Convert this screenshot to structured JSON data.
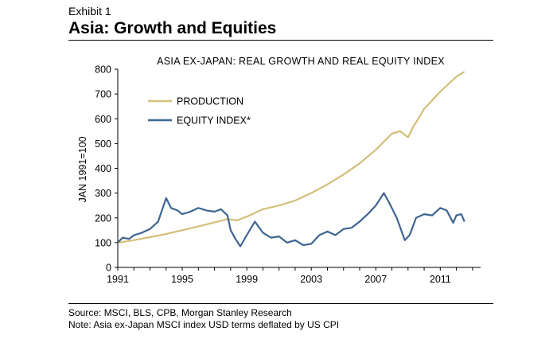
{
  "header": {
    "exhibit": "Exhibit 1",
    "title": "Asia: Growth and Equities"
  },
  "footer": {
    "source": "Source: MSCI, BLS, CPB, Morgan Stanley Research",
    "note": "Note: Asia ex-Japan MSCI index USD terms deflated by US CPI"
  },
  "colors": {
    "production": "#d4be7a",
    "equity": "#3d6591",
    "axis": "#000000"
  },
  "chart_data": {
    "type": "line",
    "title": "ASIA EX-JAPAN: REAL GROWTH AND REAL EQUITY INDEX",
    "ylabel": "JAN 1991=100",
    "xlabel": "",
    "xlim": [
      1991,
      2013.5
    ],
    "ylim": [
      0,
      800
    ],
    "y_ticks": [
      0,
      100,
      200,
      300,
      400,
      500,
      600,
      700,
      800
    ],
    "x_tick_labels": [
      "1991",
      "1995",
      "1999",
      "2003",
      "2007",
      "2011"
    ],
    "x_tick_values": [
      1991,
      1995,
      1999,
      2003,
      2007,
      2011
    ],
    "legend_position": "top-left",
    "series": [
      {
        "name": "PRODUCTION",
        "color": "#d4be7a",
        "x": [
          1991,
          1992,
          1993,
          1994,
          1995,
          1996,
          1997,
          1997.8,
          1998.4,
          1999,
          2000,
          2001,
          2002,
          2003,
          2004,
          2005,
          2006,
          2007,
          2008,
          2008.5,
          2009,
          2009.3,
          2010,
          2011,
          2012,
          2012.5
        ],
        "values": [
          100,
          110,
          122,
          135,
          150,
          165,
          182,
          195,
          190,
          205,
          235,
          250,
          270,
          300,
          335,
          375,
          420,
          475,
          540,
          550,
          525,
          565,
          640,
          710,
          770,
          790
        ]
      },
      {
        "name": "EQUITY INDEX*",
        "color": "#3d6591",
        "x": [
          1991,
          1991.3,
          1991.7,
          1992,
          1992.5,
          1993,
          1993.5,
          1994,
          1994.3,
          1994.7,
          1995,
          1995.5,
          1996,
          1996.5,
          1997,
          1997.4,
          1997.8,
          1998,
          1998.3,
          1998.6,
          1999,
          1999.5,
          2000,
          2000.5,
          2001,
          2001.5,
          2002,
          2002.5,
          2003,
          2003.5,
          2004,
          2004.5,
          2005,
          2005.5,
          2006,
          2006.5,
          2007,
          2007.5,
          2007.8,
          2008.3,
          2008.8,
          2009.1,
          2009.5,
          2010,
          2010.5,
          2011,
          2011.4,
          2011.8,
          2012,
          2012.3,
          2012.5
        ],
        "values": [
          100,
          120,
          115,
          130,
          140,
          155,
          185,
          280,
          240,
          230,
          215,
          225,
          240,
          230,
          225,
          235,
          210,
          150,
          115,
          85,
          130,
          185,
          140,
          120,
          125,
          100,
          110,
          90,
          95,
          130,
          145,
          130,
          155,
          160,
          185,
          215,
          250,
          300,
          265,
          200,
          110,
          130,
          200,
          215,
          210,
          240,
          230,
          180,
          210,
          215,
          185
        ]
      }
    ]
  }
}
